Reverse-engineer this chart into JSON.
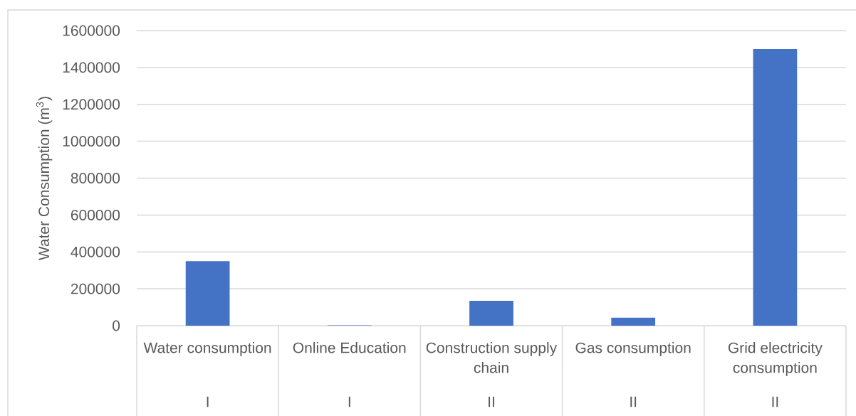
{
  "chart_data": {
    "type": "bar",
    "ylabel": "Water Consumption (m$^{3}$)",
    "categories": [
      "Water consumption",
      "Online Education",
      "Construction supply chain",
      "Gas consumption",
      "Grid electricity consumption"
    ],
    "values": [
      350000,
      2000,
      135000,
      43000,
      1500000
    ],
    "color": "#4472c4",
    "ylim": [
      0,
      1600000
    ],
    "yticks": [
      0,
      200000,
      400000,
      600000,
      800000,
      1000000,
      1200000,
      1400000,
      1600000
    ],
    "grid": "y",
    "annotations": [
      "I",
      "I",
      "II",
      "II",
      "II"
    ]
  }
}
